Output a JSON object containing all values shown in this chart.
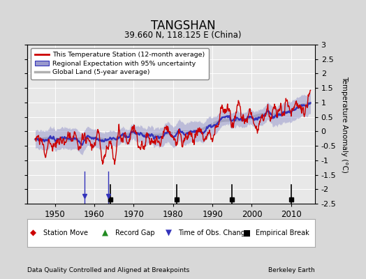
{
  "title": "TANGSHAN",
  "subtitle": "39.660 N, 118.125 E (China)",
  "ylabel": "Temperature Anomaly (°C)",
  "xlabel_left": "Data Quality Controlled and Aligned at Breakpoints",
  "xlabel_right": "Berkeley Earth",
  "ylim": [
    -2.5,
    3.0
  ],
  "yticks": [
    -2.5,
    -2,
    -1.5,
    -1,
    -0.5,
    0,
    0.5,
    1,
    1.5,
    2,
    2.5,
    3
  ],
  "xlim": [
    1943,
    2016
  ],
  "xticks": [
    1950,
    1960,
    1970,
    1980,
    1990,
    2000,
    2010
  ],
  "bg_color": "#d8d8d8",
  "plot_bg_color": "#e8e8e8",
  "station_color": "#cc0000",
  "regional_color": "#3333bb",
  "regional_fill_color": "#9999cc",
  "global_color": "#b0b0b0",
  "legend_station": "This Temperature Station (12-month average)",
  "legend_regional": "Regional Expectation with 95% uncertainty",
  "legend_global": "Global Land (5-year average)",
  "time_obs_change": [
    1957.5,
    1963.5
  ],
  "empirical_break": [
    1964,
    1981,
    1995,
    2010
  ],
  "seed": 7
}
